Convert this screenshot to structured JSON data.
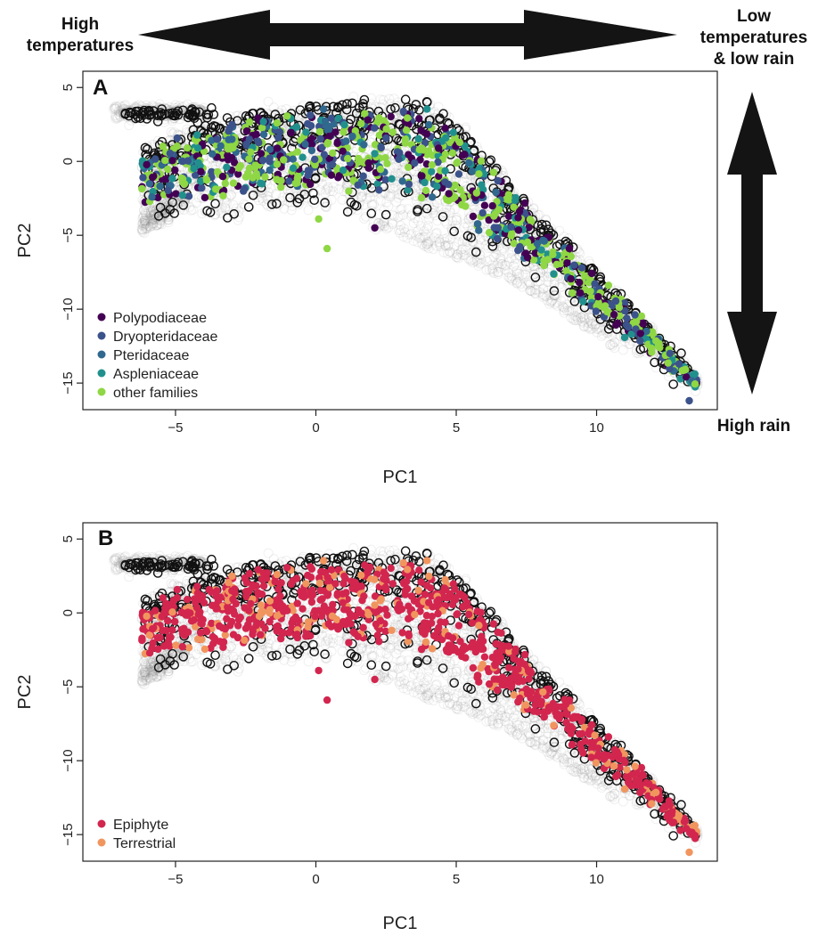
{
  "annotations": {
    "left_top_line1": "High",
    "left_top_line2": "temperatures",
    "right_top_line1": "Low",
    "right_top_line2": "temperatures",
    "right_top_line3": "& low rain",
    "right_bottom": "High rain"
  },
  "colors": {
    "background_points": "#777777",
    "Polypodiaceae": "#440154",
    "Dryopteridaceae": "#3b528b",
    "Pteridaceae": "#31688e",
    "Aspleniaceae": "#21908d",
    "other families": "#8fd744",
    "Epiphyte": "#d2264f",
    "Terrestrial": "#f1955f"
  },
  "chart_data": [
    {
      "type": "scatter",
      "panel": "A",
      "xlabel": "PC1",
      "ylabel": "PC2",
      "xlim": [
        -8.3,
        14.3
      ],
      "ylim": [
        -16.8,
        6.1
      ],
      "xticks": [
        -5,
        0,
        5,
        10
      ],
      "yticks": [
        5,
        0,
        -5,
        -10,
        -15
      ],
      "legend_position": "bottom-left",
      "legend": [
        "Polypodiaceae",
        "Dryopteridaceae",
        "Pteridaceae",
        "Aspleniaceae",
        "other families"
      ],
      "outliers": [
        [
          2.1,
          -4.5
        ],
        [
          0.4,
          -5.9
        ],
        [
          0.1,
          -3.9
        ],
        [
          13.3,
          -16.2
        ]
      ]
    },
    {
      "type": "scatter",
      "panel": "B",
      "xlabel": "PC1",
      "ylabel": "PC2",
      "xlim": [
        -8.3,
        14.3
      ],
      "ylim": [
        -16.8,
        6.1
      ],
      "xticks": [
        -5,
        0,
        5,
        10
      ],
      "yticks": [
        5,
        0,
        -5,
        -10,
        -15
      ],
      "legend_position": "bottom-left",
      "legend": [
        "Epiphyte",
        "Terrestrial"
      ],
      "outliers": [
        [
          2.1,
          -4.5
        ],
        [
          0.4,
          -5.9
        ],
        [
          0.1,
          -3.9
        ],
        [
          13.3,
          -16.2
        ]
      ]
    }
  ]
}
